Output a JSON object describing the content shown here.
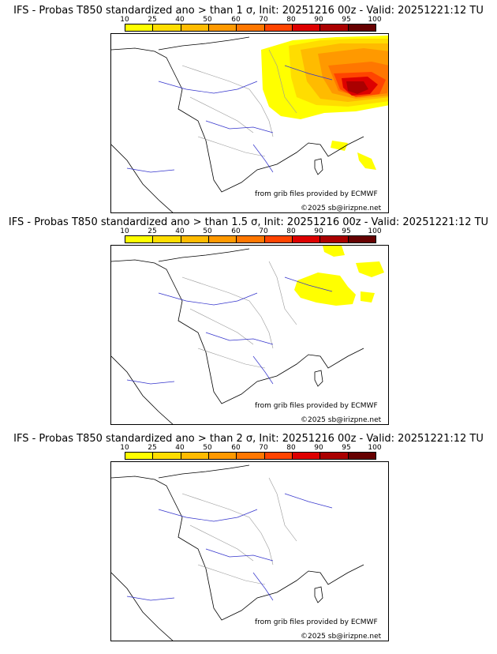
{
  "colorbar": {
    "ticks": [
      "10",
      "25",
      "40",
      "50",
      "60",
      "70",
      "80",
      "90",
      "95",
      "100"
    ],
    "colors": [
      "#ffff00",
      "#ffdd00",
      "#ffbb00",
      "#ff9900",
      "#ff7700",
      "#ff4400",
      "#dd0000",
      "#aa0000",
      "#660000"
    ]
  },
  "panels": [
    {
      "title": "IFS - Probas T850  standardized ano > than 1 σ, Init: 20251216 00z - Valid: 20251221:12 TU",
      "credit_ecmwf": "from grib files provided by ECMWF",
      "credit_site": "©2025 sb@irizpne.net"
    },
    {
      "title": "IFS - Probas T850  standardized ano > than 1.5 σ, Init: 20251216 00z - Valid: 20251221:12 TU",
      "credit_ecmwf": "from grib files provided by ECMWF",
      "credit_site": "©2025 sb@irizpne.net"
    },
    {
      "title": "IFS - Probas T850  standardized ano > than 2 σ, Init: 20251216 00z - Valid: 20251221:12 TU",
      "credit_ecmwf": "from grib files provided by ECMWF",
      "credit_site": "©2025 sb@irizpne.net"
    }
  ]
}
